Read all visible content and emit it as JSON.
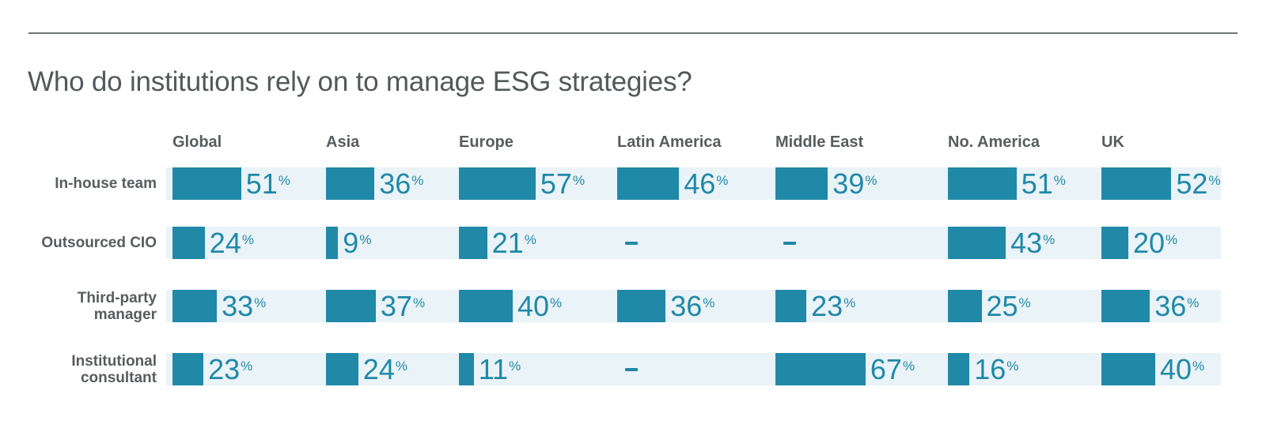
{
  "title": "Who do institutions rely on to manage ESG strategies?",
  "chart_data": {
    "type": "bar",
    "orientation": "horizontal",
    "title": "Who do institutions rely on to manage ESG strategies?",
    "value_unit": "%",
    "missing_marker": "—",
    "categories": [
      "Global",
      "Asia",
      "Europe",
      "Latin America",
      "Middle East",
      "No. America",
      "UK"
    ],
    "rows": [
      {
        "label": "In-house team",
        "label_lines": [
          "In-house team"
        ],
        "values": [
          51,
          36,
          57,
          46,
          39,
          51,
          52
        ]
      },
      {
        "label": "Outsourced CIO",
        "label_lines": [
          "Outsourced CIO"
        ],
        "values": [
          24,
          9,
          21,
          null,
          null,
          43,
          20
        ]
      },
      {
        "label": "Third-party manager",
        "label_lines": [
          "Third-party",
          "manager"
        ],
        "values": [
          33,
          37,
          40,
          36,
          23,
          25,
          36
        ]
      },
      {
        "label": "Institutional consultant",
        "label_lines": [
          "Institutional",
          "consultant"
        ],
        "values": [
          23,
          24,
          11,
          null,
          67,
          16,
          40
        ]
      }
    ],
    "xlim": [
      0,
      100
    ],
    "grid": false,
    "legend": false,
    "colors": {
      "bar": "#2089A8",
      "value_text": "#2089A8",
      "band_background": "#EAF3F7",
      "label_text": "#595C5F",
      "title_text": "#54585B",
      "divider": "#6F7478"
    }
  }
}
